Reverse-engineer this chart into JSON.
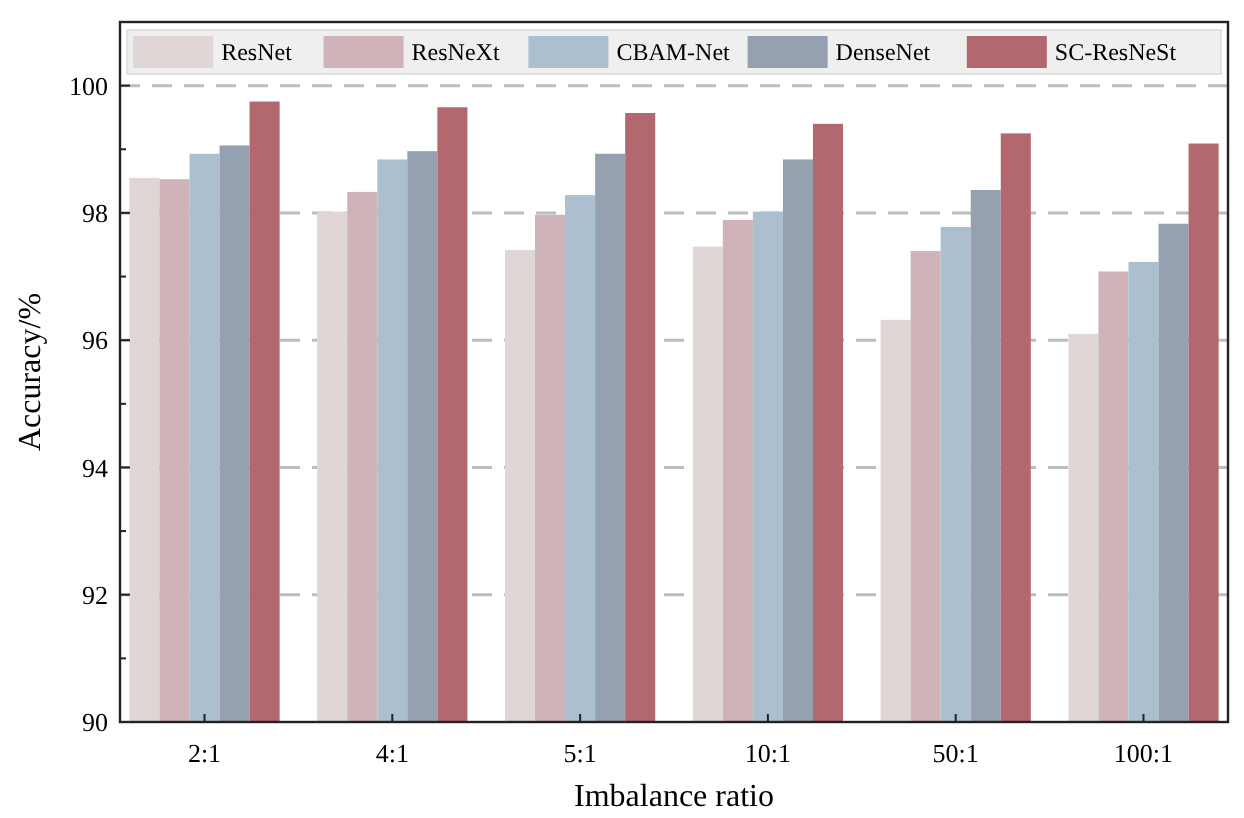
{
  "chart_data": {
    "type": "bar",
    "xlabel": "Imbalance ratio",
    "ylabel": "Accuracy/%",
    "categories": [
      "2:1",
      "4:1",
      "5:1",
      "10:1",
      "50:1",
      "100:1"
    ],
    "series": [
      {
        "name": "ResNet",
        "color": "#e0d6d6",
        "values": [
          98.55,
          98.02,
          97.42,
          97.47,
          96.32,
          96.1
        ]
      },
      {
        "name": "ResNeXt",
        "color": "#cfb3b8",
        "values": [
          98.53,
          98.33,
          97.97,
          97.89,
          97.4,
          97.08
        ]
      },
      {
        "name": "CBAM-Net",
        "color": "#abbfcf",
        "values": [
          98.93,
          98.84,
          98.28,
          98.02,
          97.78,
          97.23
        ]
      },
      {
        "name": "DenseNet",
        "color": "#95a0b0",
        "values": [
          99.06,
          98.97,
          98.93,
          98.84,
          98.36,
          97.83
        ]
      },
      {
        "name": "SC-ResNeSt",
        "color": "#b2686e",
        "values": [
          99.75,
          99.66,
          99.57,
          99.4,
          99.25,
          99.09
        ]
      }
    ],
    "ylim": [
      90,
      101
    ],
    "yticks": [
      90,
      {
        "value": 91,
        "label": null
      },
      92,
      {
        "value": 93,
        "label": null
      },
      94,
      {
        "value": 95,
        "label": null
      },
      96,
      {
        "value": 97,
        "label": null
      },
      98,
      {
        "value": 99,
        "label": null
      },
      100,
      {
        "value": 101,
        "label": null
      }
    ],
    "grid": "y",
    "legend": "top"
  }
}
